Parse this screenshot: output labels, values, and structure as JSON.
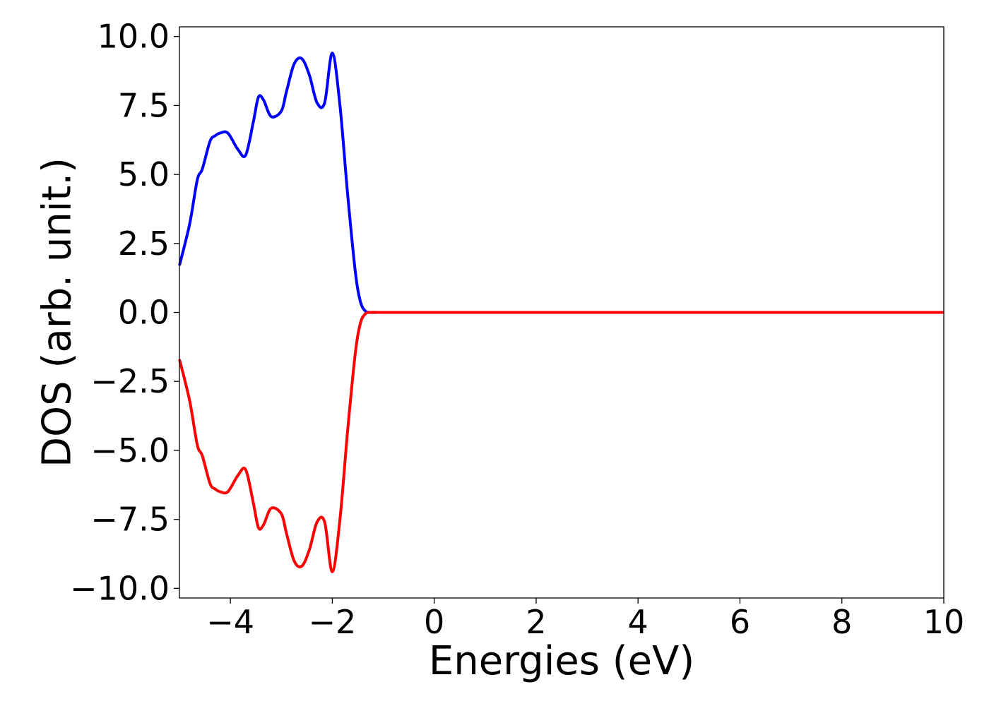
{
  "chart_data": {
    "type": "line",
    "xlabel": "Energies (eV)",
    "ylabel": "DOS (arb. unit.)",
    "xlim": [
      -5,
      10
    ],
    "ylim": [
      -10.35,
      10.35
    ],
    "x_ticks": [
      -4,
      -2,
      0,
      2,
      4,
      6,
      8,
      10
    ],
    "x_tick_labels": [
      "−4",
      "−2",
      "0",
      "2",
      "4",
      "6",
      "8",
      "10"
    ],
    "y_ticks": [
      10,
      7.5,
      5,
      2.5,
      0,
      -2.5,
      -5,
      -7.5,
      -10
    ],
    "y_tick_labels": [
      "10.0",
      "7.5",
      "5.0",
      "2.5",
      "0.0",
      "−2.5",
      "−5.0",
      "−7.5",
      "−10.0"
    ],
    "grid": false,
    "legend": "none",
    "series": [
      {
        "color": "#0000ff",
        "x": [
          -5.0,
          -4.8,
          -4.65,
          -4.55,
          -4.4,
          -4.3,
          -4.2,
          -4.05,
          -3.85,
          -3.7,
          -3.55,
          -3.45,
          -3.35,
          -3.2,
          -3.0,
          -2.9,
          -2.75,
          -2.6,
          -2.45,
          -2.3,
          -2.15,
          -2.0,
          -1.85,
          -1.7,
          -1.55,
          -1.45,
          -1.35,
          -1.25,
          -1.1,
          -1.0,
          -0.9,
          -0.75,
          -0.6,
          -0.45,
          -0.3,
          -0.2,
          0.0,
          0.2,
          0.35,
          0.5,
          0.65,
          0.8,
          0.95,
          1.1,
          1.2,
          1.3,
          1.4,
          1.5,
          1.6,
          1.7,
          1.8,
          1.95,
          2.1,
          2.2,
          2.3,
          2.4,
          2.5,
          2.6,
          2.7,
          2.8,
          2.9,
          3.0,
          3.1,
          3.2,
          3.3,
          3.45,
          3.55,
          3.7,
          3.85,
          4.0,
          4.15,
          4.3,
          4.4,
          4.5,
          4.6,
          4.7,
          4.85,
          5.0,
          5.15,
          5.3,
          5.45,
          5.6,
          5.7,
          5.8,
          5.9,
          6.0,
          6.1,
          6.25,
          6.4,
          6.55,
          6.7,
          6.8,
          6.95,
          7.05,
          7.15,
          7.3,
          7.45,
          7.6,
          7.75,
          7.9,
          8.0,
          8.1,
          8.2,
          8.3,
          8.4,
          8.5,
          8.6,
          8.75,
          8.9,
          9.05,
          9.2,
          9.35,
          9.5,
          9.6,
          9.75,
          10.0
        ],
        "y": [
          1.7,
          3.2,
          4.8,
          5.2,
          6.2,
          6.4,
          6.5,
          6.5,
          5.9,
          5.7,
          6.9,
          7.8,
          7.7,
          7.1,
          7.3,
          8.0,
          9.0,
          9.2,
          8.6,
          7.6,
          7.6,
          9.4,
          7.5,
          4.3,
          1.5,
          0.4,
          0.05,
          0.0,
          0.0,
          0.0,
          0.0,
          0.0,
          0.0,
          0.0,
          0.0,
          0.0,
          0.0,
          0.0,
          0.0,
          0.0,
          0.0,
          0.0,
          0.0,
          0.0,
          0.0,
          0.0,
          0.0,
          0.0,
          0.0,
          0.0,
          0.0,
          0.0,
          0.0,
          0.0,
          0.0,
          0.0,
          0.0,
          0.0,
          0.0,
          0.0,
          0.0,
          0.0,
          0.0,
          0.0,
          0.0,
          0.0,
          0.0,
          0.0,
          0.0,
          0.0,
          0.0,
          0.0,
          0.0,
          0.0,
          0.0,
          0.0,
          0.0,
          0.0,
          0.0,
          0.0,
          0.0,
          0.0,
          0.0,
          0.0,
          0.0,
          0.0,
          0.0,
          0.0,
          0.0,
          0.0,
          0.0,
          0.0,
          0.0,
          0.0,
          0.0,
          0.0,
          0.0,
          0.0,
          0.0,
          0.0,
          0.0,
          0.0,
          0.0,
          0.0,
          0.0,
          0.0,
          0.0,
          0.0,
          0.0,
          0.0,
          0.0,
          0.0,
          0.0,
          0.0,
          0.0,
          0.0
        ]
      },
      {
        "color": "#ff0000",
        "x": [
          -5.0,
          -4.8,
          -4.65,
          -4.55,
          -4.4,
          -4.3,
          -4.2,
          -4.05,
          -3.85,
          -3.7,
          -3.55,
          -3.45,
          -3.35,
          -3.2,
          -3.0,
          -2.9,
          -2.75,
          -2.6,
          -2.45,
          -2.3,
          -2.15,
          -2.0,
          -1.85,
          -1.7,
          -1.55,
          -1.45,
          -1.35,
          -1.25,
          -1.1,
          -1.0,
          -0.9,
          -0.75,
          -0.6,
          -0.45,
          -0.3,
          -0.2,
          0.0,
          0.2,
          0.35,
          0.5,
          0.65,
          0.8,
          0.95,
          1.1,
          1.2,
          1.3,
          1.4,
          1.5,
          1.6,
          1.7,
          1.8,
          1.95,
          2.1,
          2.2,
          2.3,
          2.4,
          2.5,
          2.6,
          2.7,
          2.8,
          2.9,
          3.0,
          3.1,
          3.2,
          3.3,
          3.45,
          3.55,
          3.7,
          3.85,
          4.0,
          4.15,
          4.3,
          4.4,
          4.5,
          4.6,
          4.7,
          4.85,
          5.0,
          5.15,
          5.3,
          5.45,
          5.6,
          5.7,
          5.8,
          5.9,
          6.0,
          6.1,
          6.25,
          6.4,
          6.55,
          6.7,
          6.8,
          6.95,
          7.05,
          7.15,
          7.3,
          7.45,
          7.6,
          7.75,
          7.9,
          8.0,
          8.1,
          8.2,
          8.3,
          8.4,
          8.5,
          8.6,
          8.75,
          8.9,
          9.05,
          9.2,
          9.35,
          9.5,
          9.6,
          9.75,
          10.0
        ],
        "y": [
          -1.7,
          -3.2,
          -4.8,
          -5.2,
          -6.2,
          -6.4,
          -6.5,
          -6.5,
          -5.9,
          -5.7,
          -6.9,
          -7.8,
          -7.7,
          -7.1,
          -7.3,
          -8.0,
          -9.0,
          -9.2,
          -8.6,
          -7.6,
          -7.6,
          -9.4,
          -7.5,
          -4.3,
          -1.5,
          -0.4,
          -0.05,
          0.0,
          0.0,
          0.0,
          0.0,
          0.0,
          0.0,
          0.0,
          0.0,
          0.0,
          0.0,
          0.0,
          0.0,
          0.0,
          0.0,
          0.0,
          0.0,
          0.0,
          0.0,
          0.0,
          0.0,
          0.0,
          0.0,
          0.0,
          0.0,
          0.0,
          0.0,
          0.0,
          0.0,
          0.0,
          0.0,
          0.0,
          0.0,
          0.0,
          0.0,
          0.0,
          0.0,
          0.0,
          0.0,
          0.0,
          0.0,
          0.0,
          0.0,
          0.0,
          0.0,
          0.0,
          0.0,
          0.0,
          0.0,
          0.0,
          0.0,
          0.0,
          0.0,
          0.0,
          0.0,
          0.0,
          0.0,
          0.0,
          0.0,
          0.0,
          0.0,
          0.0,
          0.0,
          0.0,
          0.0,
          0.0,
          0.0,
          0.0,
          0.0,
          0.0,
          0.0,
          0.0,
          0.0,
          0.0,
          0.0,
          0.0,
          0.0,
          0.0,
          0.0,
          0.0,
          0.0,
          0.0,
          0.0,
          0.0,
          0.0,
          0.0,
          0.0,
          0.0,
          0.0,
          0.0
        ]
      }
    ]
  }
}
